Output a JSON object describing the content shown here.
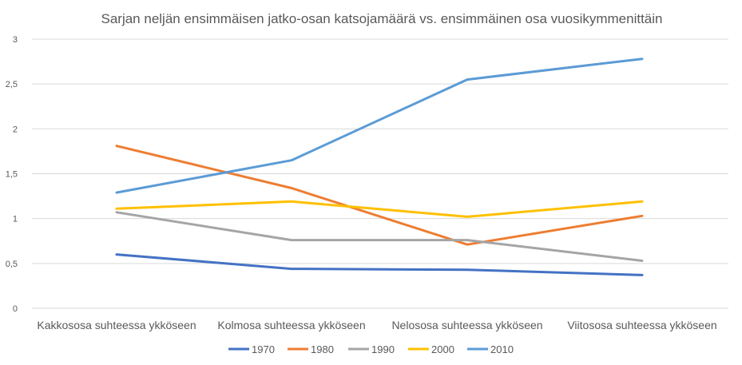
{
  "chart_data": {
    "type": "line",
    "title": "Sarjan neljän ensimmäisen jatko-osan katsojamäärä vs. ensimmäinen osa vuosikymmenittäin",
    "xlabel": "",
    "ylabel": "",
    "categories": [
      "Kakkososa suhteessa ykköseen",
      "Kolmosa suhteessa ykköseen",
      "Nelososa suhteessa ykköseen",
      "Viitososa suhteessa ykköseen"
    ],
    "ylim": [
      0,
      3
    ],
    "yticks": [
      "0",
      "0,5",
      "1",
      "1,5",
      "2",
      "2,5",
      "3"
    ],
    "ytick_values": [
      0,
      0.5,
      1,
      1.5,
      2,
      2.5,
      3
    ],
    "grid": true,
    "legend_position": "bottom",
    "series": [
      {
        "name": "1970",
        "color": "#4472c4",
        "values": [
          0.6,
          0.44,
          0.43,
          0.37
        ]
      },
      {
        "name": "1980",
        "color": "#ed7d31",
        "values": [
          1.81,
          1.34,
          0.71,
          1.03
        ]
      },
      {
        "name": "1990",
        "color": "#a5a5a5",
        "values": [
          1.07,
          0.76,
          0.76,
          0.53
        ]
      },
      {
        "name": "2000",
        "color": "#ffc000",
        "values": [
          1.11,
          1.19,
          1.02,
          1.19
        ]
      },
      {
        "name": "2010",
        "color": "#5b9bd5",
        "values": [
          1.29,
          1.65,
          2.55,
          2.78
        ]
      }
    ]
  }
}
